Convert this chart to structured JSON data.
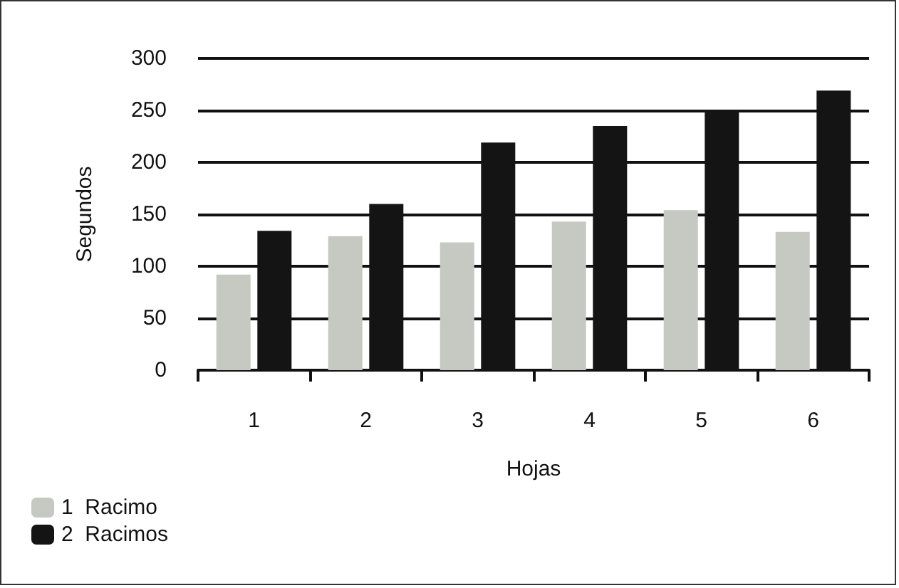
{
  "chart_data": {
    "type": "bar",
    "xlabel": "Hojas",
    "ylabel": "Segundos",
    "categories": [
      "1",
      "2",
      "3",
      "4",
      "5",
      "6"
    ],
    "series": [
      {
        "name": "1  Racimo",
        "color": "#c5c9c1",
        "values": [
          92,
          129,
          123,
          143,
          154,
          133
        ]
      },
      {
        "name": "2  Racimos",
        "color": "#141414",
        "values": [
          134,
          160,
          219,
          235,
          250,
          269
        ]
      }
    ],
    "ylim": [
      0,
      300
    ],
    "yticks": [
      0,
      50,
      100,
      150,
      200,
      250,
      300
    ],
    "grid": "y",
    "legend": "bottom left"
  }
}
